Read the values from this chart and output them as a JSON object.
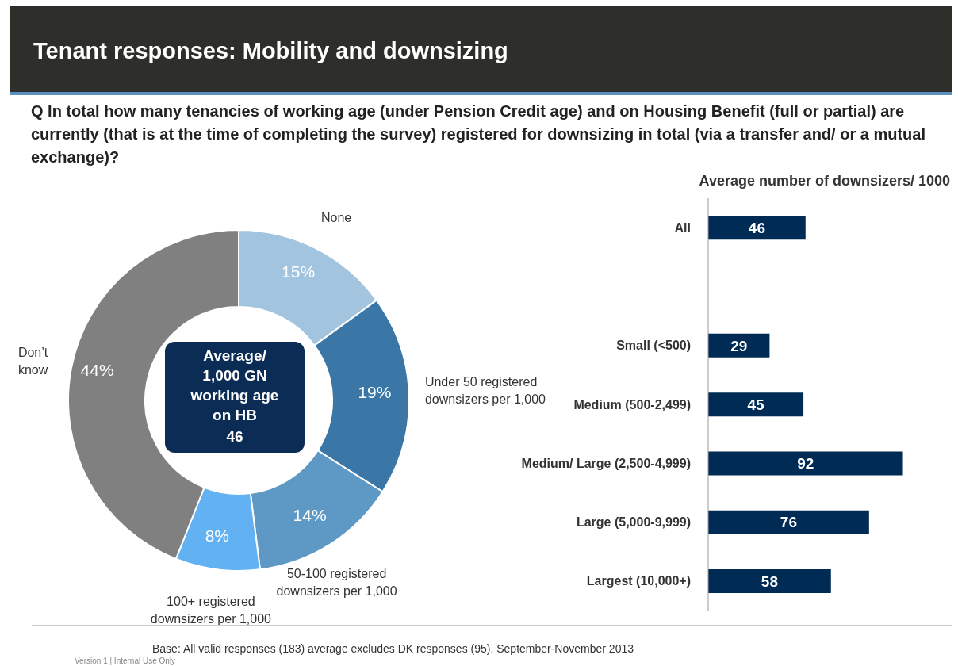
{
  "chart_data": [
    {
      "type": "donut",
      "title": "Tenant responses: Mobility and downsizing",
      "subtitle": "Q  In total how many tenancies of working age (under Pension Credit age) and on Housing Benefit (full or partial) are currently (that is at the time of completing the survey) registered for downsizing in total (via a transfer and/ or a mutual exchange)?",
      "categories": [
        "None",
        "Under 50 registered downsizers per 1,000",
        "50-100 registered downsizers per 1,000",
        "100+ registered downsizers per 1,000",
        "Don’t know"
      ],
      "values": [
        15,
        19,
        14,
        8,
        44
      ],
      "colors": [
        "#a3c4de",
        "#3b77a6",
        "#5e99c5",
        "#62b1f2",
        "#808080"
      ],
      "value_labels": [
        "15%",
        "19%",
        "14%",
        "8%",
        "44%"
      ],
      "annotations": [
        "Average/ 1,000 GN working age on HB",
        "46",
        "Base: All valid responses (183) average excludes DK responses (95), September-November 2013",
        "Version 1 | Internal Use Only"
      ],
      "legend": false
    },
    {
      "type": "bar",
      "orientation": "horizontal",
      "title": "Average number of downsizers/ 1000",
      "categories": [
        "All",
        null,
        "Small (<500)",
        "Medium (500-2,499)",
        "Medium/ Large (2,500-4,999)",
        "Large (5,000-9,999)",
        "Largest (10,000+)"
      ],
      "values": [
        46,
        null,
        29,
        45,
        92,
        76,
        58
      ],
      "color": "#002b55",
      "data_labels": true,
      "legend": false
    }
  ]
}
